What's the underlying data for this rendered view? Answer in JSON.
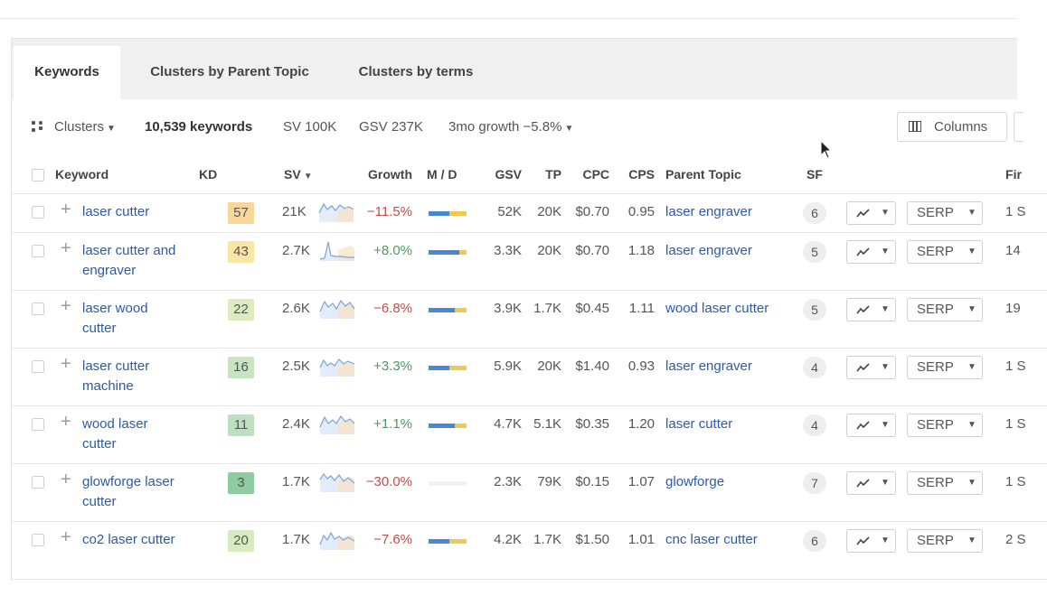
{
  "tabs": [
    {
      "label": "Keywords",
      "active": true
    },
    {
      "label": "Clusters by Parent Topic",
      "active": false
    },
    {
      "label": "Clusters by terms",
      "active": false
    }
  ],
  "toolbar": {
    "clusters_label": "Clusters",
    "keyword_count": "10,539 keywords",
    "sv": "SV 100K",
    "gsv": "GSV 237K",
    "growth": "3mo growth −5.8%",
    "columns_label": "Columns"
  },
  "columns": {
    "keyword": "Keyword",
    "kd": "KD",
    "sv": "SV",
    "growth": "Growth",
    "md": "M / D",
    "gsv": "GSV",
    "tp": "TP",
    "cpc": "CPC",
    "cps": "CPS",
    "parent": "Parent Topic",
    "sf": "SF",
    "first": "Fir"
  },
  "serp_label": "SERP",
  "rows": [
    {
      "keyword": "laser cutter",
      "kd": "57",
      "kd_color": "#f7d79a",
      "sv": "21K",
      "growth": "−11.5%",
      "growth_sign": "neg",
      "md_mobile": 0.55,
      "md_desktop": 0.45,
      "gsv": "52K",
      "tp": "20K",
      "cpc": "$0.70",
      "cps": "0.95",
      "parent": "laser engraver",
      "sf": "6",
      "first": "1 S"
    },
    {
      "keyword": "laser cutter and engraver",
      "kd": "43",
      "kd_color": "#f9e6a4",
      "sv": "2.7K",
      "growth": "+8.0%",
      "growth_sign": "pos",
      "md_mobile": 0.8,
      "md_desktop": 0.2,
      "gsv": "3.3K",
      "tp": "20K",
      "cpc": "$0.70",
      "cps": "1.18",
      "parent": "laser engraver",
      "sf": "5",
      "first": "14"
    },
    {
      "keyword": "laser wood cutter",
      "kd": "22",
      "kd_color": "#dcecc0",
      "sv": "2.6K",
      "growth": "−6.8%",
      "growth_sign": "neg",
      "md_mobile": 0.7,
      "md_desktop": 0.3,
      "gsv": "3.9K",
      "tp": "1.7K",
      "cpc": "$0.45",
      "cps": "1.11",
      "parent": "wood laser cutter",
      "sf": "5",
      "first": "19"
    },
    {
      "keyword": "laser cutter machine",
      "kd": "16",
      "kd_color": "#c8e4c0",
      "sv": "2.5K",
      "growth": "+3.3%",
      "growth_sign": "pos",
      "md_mobile": 0.55,
      "md_desktop": 0.45,
      "gsv": "5.9K",
      "tp": "20K",
      "cpc": "$1.40",
      "cps": "0.93",
      "parent": "laser engraver",
      "sf": "4",
      "first": "1 S"
    },
    {
      "keyword": "wood laser cutter",
      "kd": "11",
      "kd_color": "#bfe0c0",
      "sv": "2.4K",
      "growth": "+1.1%",
      "growth_sign": "pos",
      "md_mobile": 0.7,
      "md_desktop": 0.3,
      "gsv": "4.7K",
      "tp": "5.1K",
      "cpc": "$0.35",
      "cps": "1.20",
      "parent": "laser cutter",
      "sf": "4",
      "first": "1 S"
    },
    {
      "keyword": "glowforge laser cutter",
      "kd": "3",
      "kd_color": "#8fcba0",
      "sv": "1.7K",
      "growth": "−30.0%",
      "growth_sign": "neg",
      "md_mobile": 0.0,
      "md_desktop": 0.0,
      "gsv": "2.3K",
      "tp": "79K",
      "cpc": "$0.15",
      "cps": "1.07",
      "parent": "glowforge",
      "sf": "7",
      "first": "1 S"
    },
    {
      "keyword": "co2 laser cutter",
      "kd": "20",
      "kd_color": "#d6ebc0",
      "sv": "1.7K",
      "growth": "−7.6%",
      "growth_sign": "neg",
      "md_mobile": 0.55,
      "md_desktop": 0.45,
      "gsv": "4.2K",
      "tp": "1.7K",
      "cpc": "$1.50",
      "cps": "1.01",
      "parent": "cnc laser cutter",
      "sf": "6",
      "first": "2 S"
    }
  ],
  "colors": {
    "link": "#2c5aa8",
    "negative": "#c94a43",
    "positive": "#4c9a5b",
    "mobile": "#4a86d6",
    "desktop": "#f2c94c"
  }
}
